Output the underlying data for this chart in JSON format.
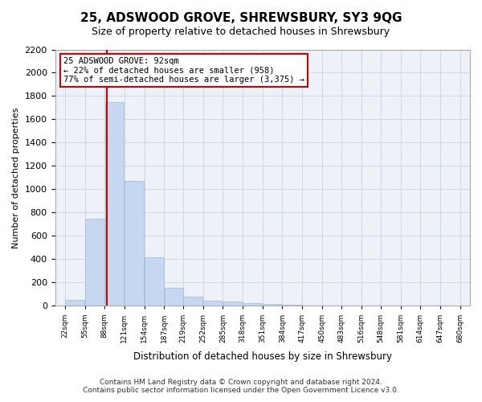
{
  "title": "25, ADSWOOD GROVE, SHREWSBURY, SY3 9QG",
  "subtitle": "Size of property relative to detached houses in Shrewsbury",
  "xlabel": "Distribution of detached houses by size in Shrewsbury",
  "ylabel": "Number of detached properties",
  "footer_line1": "Contains HM Land Registry data © Crown copyright and database right 2024.",
  "footer_line2": "Contains public sector information licensed under the Open Government Licence v3.0.",
  "bar_color": "#c5d8f0",
  "bar_edge_color": "#a0b8d8",
  "annotation_box_text_line1": "25 ADSWOOD GROVE: 92sqm",
  "annotation_box_text_line2": "← 22% of detached houses are smaller (958)",
  "annotation_box_text_line3": "77% of semi-detached houses are larger (3,375) →",
  "annotation_box_color": "#ffffff",
  "annotation_box_edge_color": "#cc0000",
  "vline_color": "#cc0000",
  "vline_x": 92,
  "grid_color": "#d0d8e8",
  "background_color": "#eef2f8",
  "ylim": [
    0,
    2200
  ],
  "yticks": [
    0,
    200,
    400,
    600,
    800,
    1000,
    1200,
    1400,
    1600,
    1800,
    2000,
    2200
  ],
  "bin_edges": [
    22,
    55,
    88,
    121,
    154,
    187,
    219,
    252,
    285,
    318,
    351,
    384,
    417,
    450,
    483,
    516,
    548,
    581,
    614,
    647,
    680
  ],
  "bin_labels": [
    "22sqm",
    "55sqm",
    "88sqm",
    "121sqm",
    "154sqm",
    "187sqm",
    "219sqm",
    "252sqm",
    "285sqm",
    "318sqm",
    "351sqm",
    "384sqm",
    "417sqm",
    "450sqm",
    "483sqm",
    "516sqm",
    "548sqm",
    "581sqm",
    "614sqm",
    "647sqm",
    "680sqm"
  ],
  "bar_heights": [
    50,
    750,
    1750,
    1075,
    420,
    155,
    80,
    45,
    35,
    25,
    20,
    10,
    5,
    3,
    2,
    2,
    1,
    1,
    1,
    0
  ]
}
